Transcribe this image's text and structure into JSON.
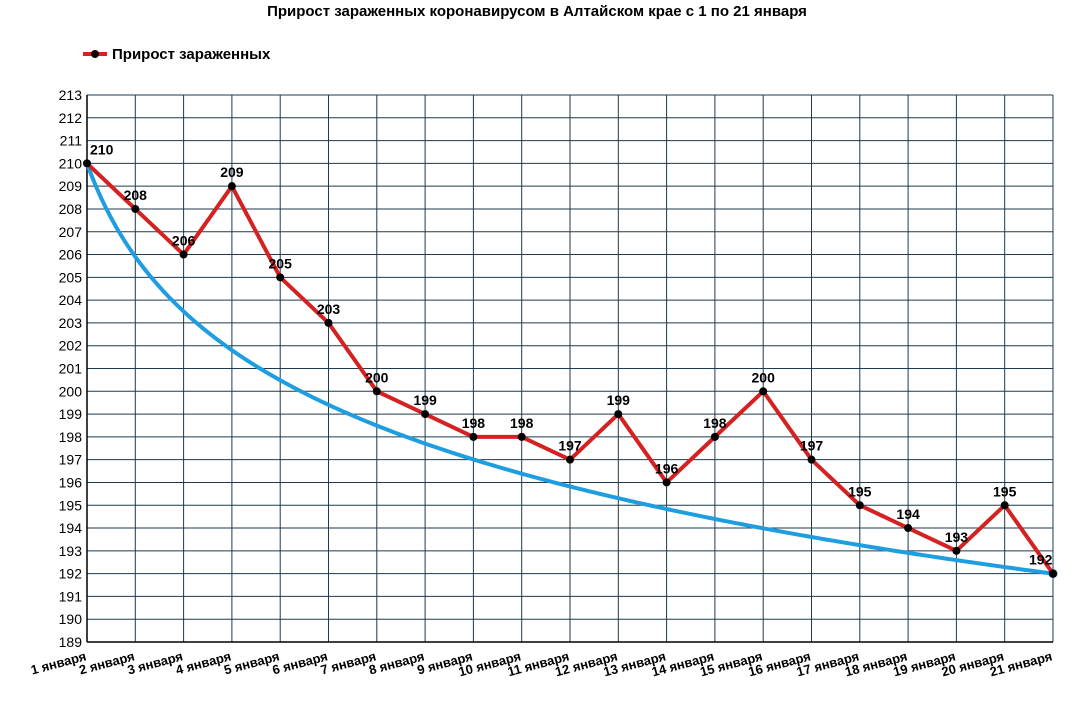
{
  "chart_data": {
    "type": "line",
    "title": "Прирост зараженных коронавирусом в Алтайском крае с 1 по 21 января",
    "categories": [
      "1 января",
      "2 января",
      "3 января",
      "4 января",
      "5 января",
      "6 января",
      "7 января",
      "8 января",
      "9 января",
      "10 января",
      "11 января",
      "12 января",
      "13 января",
      "14 января",
      "15 января",
      "16 января",
      "17 января",
      "18 января",
      "19 января",
      "20 января",
      "21 января"
    ],
    "series": [
      {
        "name": "Прирост зараженных",
        "color": "#d42222",
        "values": [
          210,
          208,
          206,
          209,
          205,
          203,
          200,
          199,
          198,
          198,
          197,
          199,
          196,
          198,
          200,
          197,
          195,
          194,
          193,
          195,
          192
        ]
      }
    ],
    "trendline": {
      "type": "logarithmic",
      "color": "#1e9ee0",
      "start": 210,
      "end": 192
    },
    "ylim": [
      189,
      213
    ],
    "yticks": [
      189,
      190,
      191,
      192,
      193,
      194,
      195,
      196,
      197,
      198,
      199,
      200,
      201,
      202,
      203,
      204,
      205,
      206,
      207,
      208,
      209,
      210,
      211,
      212,
      213
    ],
    "grid": true,
    "legend": "top-left"
  }
}
